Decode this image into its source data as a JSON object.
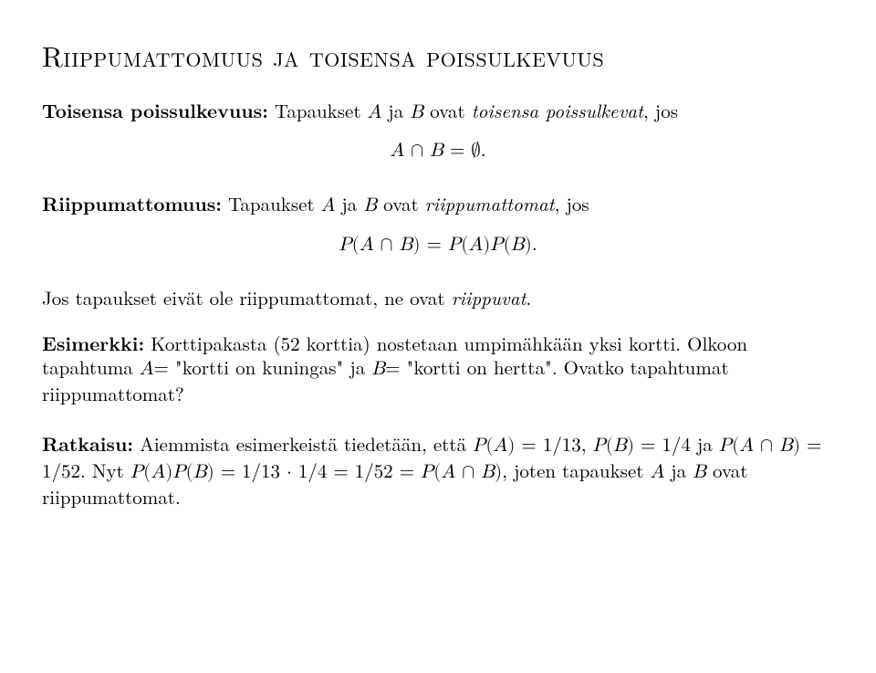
{
  "title": "Riippumattomuus ja toisensa poissulkevuus",
  "p1_lead": "Toisensa poissulkevuus:",
  "p1_body_a": " Tapaukset ",
  "p1_A": "A",
  "p1_body_b": " ja ",
  "p1_B": "B",
  "p1_body_c": " ovat ",
  "p1_ital": "toisensa poissulkevat",
  "p1_body_d": ", jos",
  "eq1_A": "A",
  "eq1_cap": " ∩ ",
  "eq1_B": "B",
  "eq1_eq": " = ",
  "eq1_empty": "∅",
  "eq1_dot": ".",
  "p2_lead": "Riippumattomuus:",
  "p2_body_a": " Tapaukset ",
  "p2_A": "A",
  "p2_body_b": " ja ",
  "p2_B": "B",
  "p2_body_c": " ovat ",
  "p2_ital": "riippumattomat",
  "p2_body_d": ", jos",
  "eq2_l": "P",
  "eq2_lp": "(",
  "eq2_A": "A",
  "eq2_cap": " ∩ ",
  "eq2_B": "B",
  "eq2_rp": ")",
  "eq2_eq": " = ",
  "eq2_P2": "P",
  "eq2_lp2": "(",
  "eq2_A2": "A",
  "eq2_rp2": ")",
  "eq2_P3": "P",
  "eq2_lp3": "(",
  "eq2_B2": "B",
  "eq2_rp3": ")",
  "eq2_dot": ".",
  "p3_a": "Jos tapaukset eivät ole riippumattomat, ne ovat ",
  "p3_ital": "riippuvat",
  "p3_b": ".",
  "p4_lead": "Esimerkki:",
  "p4_a": " Korttipakasta (52 korttia) nostetaan umpimähkään yksi kortti. Olkoon tapahtuma ",
  "p4_A": "A",
  "p4_b": "= \"kortti on kuningas\" ja ",
  "p4_B": "B",
  "p4_c": "= \"kortti on hertta\". Ovatko tapahtumat riippumattomat?",
  "p5_lead": "Ratkaisu:",
  "p5_a": " Aiemmista esimerkeistä tiedetään, että ",
  "p5_m1": "P(A) = 1/13",
  "p5_b": ", ",
  "p5_m2": "P(B) = 1/4",
  "p5_c": " ja ",
  "p5_m3": "P(A ∩ B) = 1/52",
  "p5_d": ". Nyt ",
  "p5_m4": "P(A)P(B) = 1/13 · 1/4 = 1/52 = P(A ∩ B)",
  "p5_e": ", joten tapaukset ",
  "p5_A": "A",
  "p5_f": " ja ",
  "p5_B": "B",
  "p5_g": " ovat riippumattomat."
}
